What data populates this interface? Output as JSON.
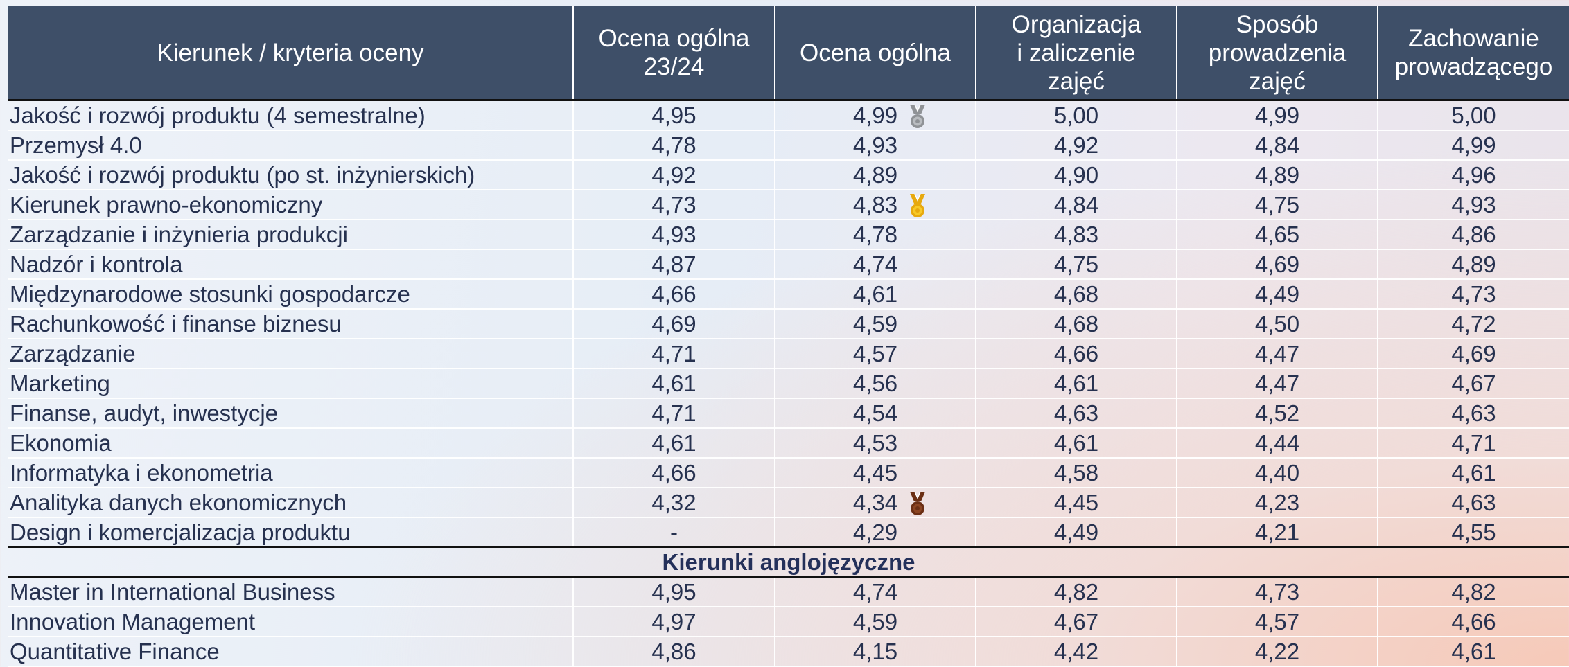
{
  "header": {
    "columns": [
      [
        "Kierunek / kryteria oceny"
      ],
      [
        "Ocena ogólna",
        "23/24"
      ],
      [
        "Ocena ogólna"
      ],
      [
        "Organizacja",
        "i zaliczenie",
        "zajęć"
      ],
      [
        "Sposób",
        "prowadzenia",
        "zajęć"
      ],
      [
        "Zachowanie",
        "prowadzącego"
      ]
    ]
  },
  "table": {
    "groups": [
      {
        "rows": [
          {
            "cells": [
              "Jakość i rozwój produktu (4 semestralne)",
              "4,95",
              "4,99",
              "5,00",
              "4,99",
              "5,00"
            ],
            "medal": "silver"
          },
          {
            "cells": [
              "Przemysł 4.0",
              "4,78",
              "4,93",
              "4,92",
              "4,84",
              "4,99"
            ]
          },
          {
            "cells": [
              "Jakość i rozwój produktu (po st. inżynierskich)",
              "4,92",
              "4,89",
              "4,90",
              "4,89",
              "4,96"
            ]
          },
          {
            "cells": [
              "Kierunek prawno-ekonomiczny",
              "4,73",
              "4,83",
              "4,84",
              "4,75",
              "4,93"
            ],
            "medal": "gold"
          },
          {
            "cells": [
              "Zarządzanie i inżynieria produkcji",
              "4,93",
              "4,78",
              "4,83",
              "4,65",
              "4,86"
            ]
          },
          {
            "cells": [
              "Nadzór i kontrola",
              "4,87",
              "4,74",
              "4,75",
              "4,69",
              "4,89"
            ]
          },
          {
            "cells": [
              "Międzynarodowe stosunki gospodarcze",
              "4,66",
              "4,61",
              "4,68",
              "4,49",
              "4,73"
            ]
          },
          {
            "cells": [
              "Rachunkowość i finanse biznesu",
              "4,69",
              "4,59",
              "4,68",
              "4,50",
              "4,72"
            ]
          },
          {
            "cells": [
              "Zarządzanie",
              "4,71",
              "4,57",
              "4,66",
              "4,47",
              "4,69"
            ]
          },
          {
            "cells": [
              "Marketing",
              "4,61",
              "4,56",
              "4,61",
              "4,47",
              "4,67"
            ]
          },
          {
            "cells": [
              "Finanse, audyt, inwestycje",
              "4,71",
              "4,54",
              "4,63",
              "4,52",
              "4,63"
            ]
          },
          {
            "cells": [
              "Ekonomia",
              "4,61",
              "4,53",
              "4,61",
              "4,44",
              "4,71"
            ]
          },
          {
            "cells": [
              "Informatyka i ekonometria",
              "4,66",
              "4,45",
              "4,58",
              "4,40",
              "4,61"
            ]
          },
          {
            "cells": [
              "Analityka danych ekonomicznych",
              "4,32",
              "4,34",
              "4,45",
              "4,23",
              "4,63"
            ],
            "medal": "bronze"
          },
          {
            "cells": [
              "Design i komercjalizacja produktu",
              "-",
              "4,29",
              "4,49",
              "4,21",
              "4,55"
            ]
          }
        ]
      },
      {
        "title": "Kierunki anglojęzyczne",
        "rows": [
          {
            "cells": [
              "Master in International Business",
              "4,95",
              "4,74",
              "4,82",
              "4,73",
              "4,82"
            ]
          },
          {
            "cells": [
              "Innovation Management",
              "4,97",
              "4,59",
              "4,67",
              "4,57",
              "4,66"
            ]
          },
          {
            "cells": [
              "Quantitative Finance",
              "4,86",
              "4,15",
              "4,42",
              "4,22",
              "4,61"
            ]
          }
        ]
      }
    ]
  }
}
